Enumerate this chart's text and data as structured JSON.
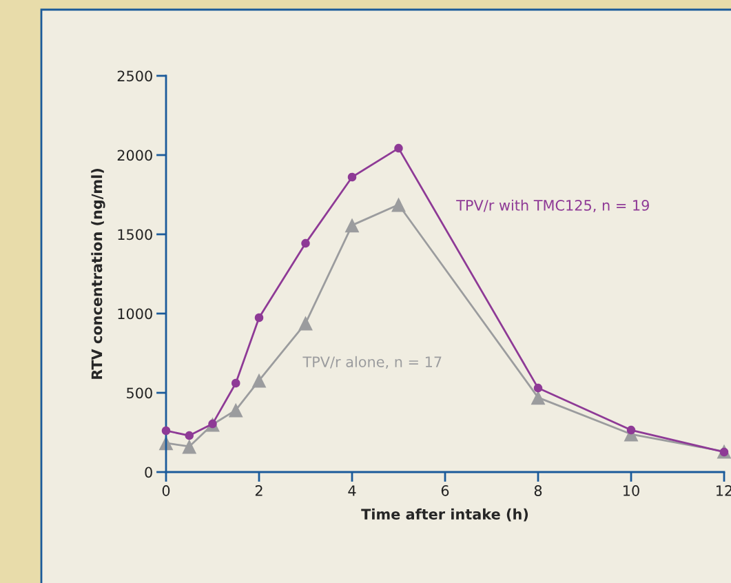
{
  "chart_data": {
    "type": "line",
    "xlabel": "Time after intake (h)",
    "ylabel": "RTV concentration (ng/ml)",
    "x": [
      0,
      0.5,
      1,
      1.5,
      2,
      3,
      4,
      5,
      8,
      10,
      12
    ],
    "series": [
      {
        "name": "TPV/r with TMC125, n = 19",
        "color": "#8e3a96",
        "marker": "circle",
        "values": [
          261,
          230,
          304,
          561,
          974,
          1443,
          1861,
          2043,
          530,
          265,
          126
        ]
      },
      {
        "name": "TPV/r alone, n = 17",
        "color": "#9b9c9e",
        "marker": "triangle",
        "values": [
          183,
          161,
          300,
          391,
          578,
          939,
          1557,
          1687,
          470,
          239,
          130
        ]
      }
    ],
    "xlim": [
      0,
      12
    ],
    "ylim": [
      0,
      2500
    ],
    "xticks": [
      0,
      2,
      4,
      6,
      8,
      10,
      12
    ],
    "yticks": [
      0,
      500,
      1000,
      1500,
      2000,
      2500
    ],
    "grid": false,
    "legend": false,
    "line_style": "solid"
  }
}
